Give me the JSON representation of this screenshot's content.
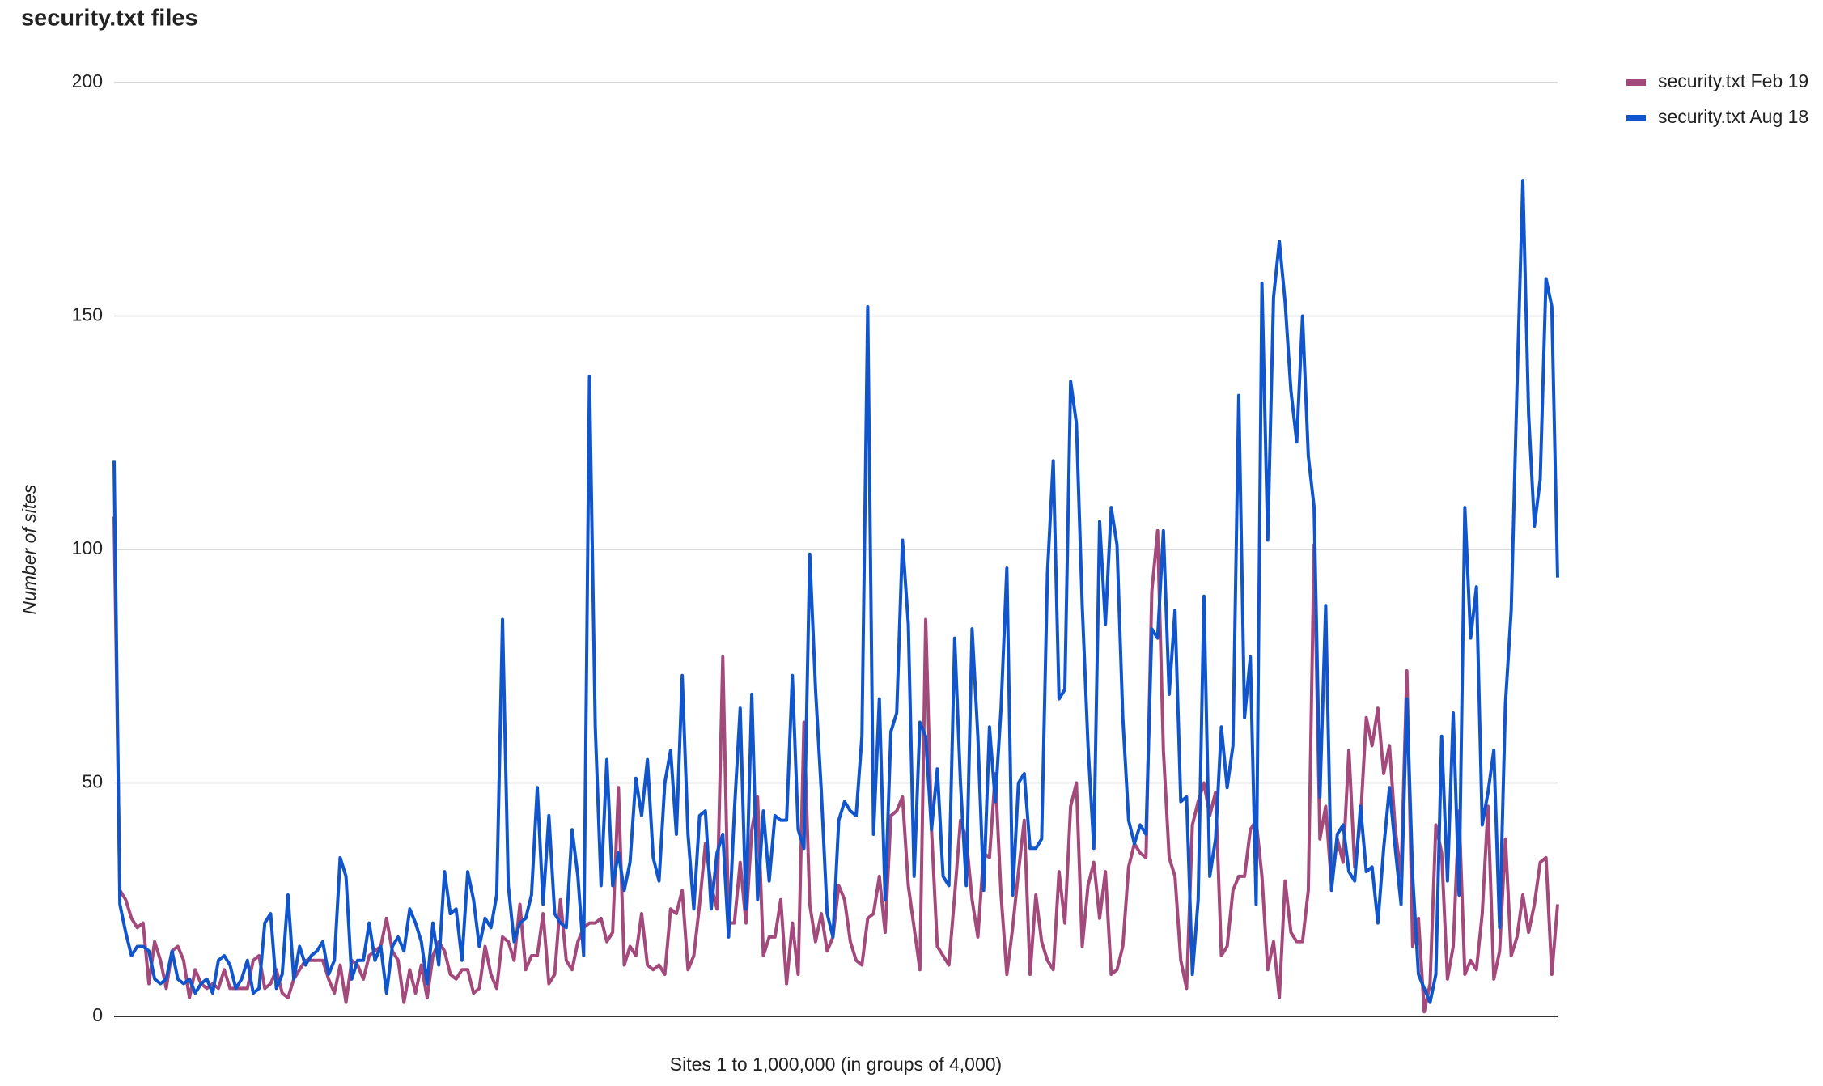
{
  "chart_data": {
    "type": "line",
    "title": "security.txt files",
    "x_label": "Sites 1 to 1,000,000 (in groups of 4,000)",
    "y_label": "Number of sites",
    "ylim": [
      0,
      200
    ],
    "yticks": [
      0,
      50,
      100,
      150,
      200
    ],
    "grid": true,
    "legend": "right",
    "series": [
      {
        "name": "security.txt Feb 19",
        "color": "#a4497b",
        "values": [
          107,
          27,
          25,
          21,
          19,
          20,
          7,
          16,
          12,
          6,
          14,
          15,
          12,
          4,
          10,
          7,
          6,
          7,
          6,
          10,
          6,
          6,
          6,
          6,
          12,
          13,
          6,
          7,
          10,
          5,
          4,
          8,
          10,
          12,
          12,
          12,
          12,
          8,
          5,
          11,
          3,
          12,
          11,
          8,
          13,
          14,
          15,
          21,
          14,
          12,
          3,
          10,
          5,
          11,
          4,
          13,
          16,
          14,
          9,
          8,
          10,
          10,
          5,
          6,
          15,
          9,
          6,
          17,
          16,
          12,
          24,
          10,
          13,
          13,
          22,
          7,
          9,
          25,
          12,
          10,
          16,
          19,
          20,
          20,
          21,
          16,
          18,
          49,
          11,
          15,
          13,
          22,
          11,
          10,
          11,
          9,
          23,
          22,
          27,
          10,
          13,
          24,
          37,
          28,
          23,
          77,
          20,
          20,
          33,
          20,
          40,
          47,
          13,
          17,
          17,
          25,
          7,
          20,
          9,
          63,
          24,
          16,
          22,
          14,
          17,
          28,
          25,
          16,
          12,
          11,
          21,
          22,
          30,
          18,
          43,
          44,
          47,
          28,
          19,
          10,
          85,
          40,
          15,
          13,
          11,
          26,
          42,
          38,
          25,
          17,
          35,
          34,
          52,
          26,
          9,
          19,
          31,
          42,
          9,
          26,
          16,
          12,
          10,
          31,
          20,
          45,
          50,
          15,
          28,
          33,
          21,
          31,
          9,
          10,
          15,
          32,
          37,
          35,
          34,
          91,
          104,
          57,
          34,
          30,
          12,
          6,
          41,
          46,
          50,
          43,
          48,
          13,
          15,
          27,
          30,
          30,
          40,
          42,
          30,
          10,
          16,
          4,
          29,
          18,
          16,
          16,
          27,
          101,
          38,
          45,
          28,
          38,
          33,
          57,
          32,
          42,
          64,
          58,
          66,
          52,
          58,
          40,
          30,
          74,
          15,
          21,
          1,
          7,
          41,
          35,
          8,
          15,
          44,
          9,
          12,
          10,
          22,
          45,
          8,
          14,
          38,
          13,
          17,
          26,
          18,
          24,
          33,
          34,
          9,
          24
        ]
      },
      {
        "name": "security.txt Aug 18",
        "color": "#1155cc",
        "values": [
          119,
          24,
          18,
          13,
          15,
          15,
          14,
          8,
          7,
          8,
          14,
          8,
          7,
          8,
          5,
          7,
          8,
          5,
          12,
          13,
          11,
          6,
          8,
          12,
          5,
          6,
          20,
          22,
          6,
          9,
          26,
          8,
          15,
          11,
          13,
          14,
          16,
          9,
          12,
          34,
          30,
          8,
          12,
          12,
          20,
          12,
          15,
          5,
          15,
          17,
          14,
          23,
          20,
          16,
          7,
          20,
          11,
          31,
          22,
          23,
          12,
          31,
          25,
          15,
          21,
          19,
          26,
          85,
          28,
          16,
          20,
          21,
          26,
          49,
          24,
          43,
          22,
          20,
          19,
          40,
          30,
          13,
          137,
          62,
          28,
          55,
          28,
          35,
          27,
          33,
          51,
          43,
          55,
          34,
          29,
          50,
          57,
          39,
          73,
          39,
          23,
          43,
          44,
          23,
          35,
          39,
          17,
          44,
          66,
          23,
          69,
          25,
          44,
          29,
          43,
          42,
          42,
          73,
          40,
          36,
          99,
          70,
          48,
          22,
          17,
          42,
          46,
          44,
          43,
          60,
          152,
          39,
          68,
          25,
          61,
          65,
          102,
          84,
          30,
          63,
          60,
          40,
          53,
          30,
          28,
          81,
          50,
          28,
          83,
          60,
          27,
          62,
          46,
          66,
          96,
          26,
          50,
          52,
          36,
          36,
          38,
          95,
          119,
          68,
          70,
          136,
          127,
          88,
          58,
          36,
          106,
          84,
          109,
          101,
          64,
          42,
          37,
          41,
          39,
          83,
          81,
          104,
          69,
          87,
          46,
          47,
          9,
          25,
          90,
          30,
          38,
          62,
          49,
          58,
          133,
          64,
          77,
          24,
          157,
          102,
          154,
          166,
          153,
          134,
          123,
          150,
          120,
          109,
          47,
          88,
          27,
          39,
          41,
          31,
          29,
          45,
          31,
          32,
          20,
          36,
          49,
          36,
          24,
          68,
          30,
          9,
          6,
          3,
          9,
          60,
          29,
          65,
          26,
          109,
          81,
          92,
          41,
          48,
          57,
          19,
          67,
          87,
          135,
          179,
          129,
          105,
          115,
          158,
          152,
          94
        ]
      }
    ]
  }
}
